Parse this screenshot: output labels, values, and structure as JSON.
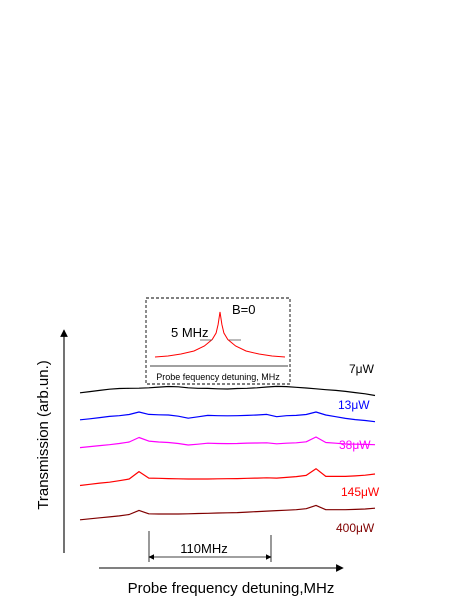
{
  "chart_data": {
    "type": "line",
    "title": "",
    "xlabel": "Probe frequency detuning,MHz",
    "ylabel": "Transmission (arb.un.)",
    "axes": "arrows only, no ticks",
    "grid": false,
    "legend": "labels at right end of each trace",
    "x": [
      0,
      10,
      20,
      30,
      40,
      50,
      60,
      70,
      80,
      90,
      100,
      110,
      120,
      130,
      140,
      150,
      160,
      170,
      180,
      190,
      200,
      210,
      220,
      230,
      240,
      250,
      260,
      270,
      280,
      290,
      300
    ],
    "series": [
      {
        "name": "7μW",
        "color": "#000000",
        "values": [
          0.18,
          0.28,
          0.38,
          0.48,
          0.54,
          0.56,
          0.57,
          0.6,
          0.66,
          0.71,
          0.68,
          0.6,
          0.56,
          0.55,
          0.52,
          0.5,
          0.54,
          0.56,
          0.6,
          0.67,
          0.72,
          0.7,
          0.64,
          0.58,
          0.52,
          0.44,
          0.38,
          0.3,
          0.2,
          0.1,
          -0.04
        ]
      },
      {
        "name": "13μW",
        "color": "#0000ff",
        "values": [
          0.1,
          0.18,
          0.28,
          0.38,
          0.44,
          0.54,
          0.75,
          0.55,
          0.52,
          0.5,
          0.4,
          0.23,
          0.35,
          0.47,
          0.44,
          0.43,
          0.44,
          0.47,
          0.5,
          0.55,
          0.36,
          0.44,
          0.47,
          0.54,
          0.75,
          0.5,
          0.36,
          0.22,
          0.12,
          0.04,
          -0.06
        ]
      },
      {
        "name": "38μW",
        "color": "#ff00ff",
        "values": [
          0.12,
          0.2,
          0.28,
          0.36,
          0.46,
          0.58,
          0.96,
          0.66,
          0.58,
          0.54,
          0.46,
          0.33,
          0.4,
          0.48,
          0.46,
          0.45,
          0.46,
          0.49,
          0.5,
          0.52,
          0.43,
          0.48,
          0.52,
          0.6,
          1.0,
          0.54,
          0.48,
          0.42,
          0.4,
          0.38,
          0.36
        ]
      },
      {
        "name": "145μW",
        "color": "#ff0000",
        "values": [
          0.04,
          0.14,
          0.24,
          0.32,
          0.44,
          0.58,
          1.2,
          0.66,
          0.64,
          0.62,
          0.6,
          0.58,
          0.58,
          0.58,
          0.6,
          0.61,
          0.62,
          0.64,
          0.66,
          0.68,
          0.66,
          0.72,
          0.78,
          0.88,
          1.44,
          0.8,
          0.8,
          0.8,
          0.84,
          0.9,
          1.0
        ]
      },
      {
        "name": "400μW",
        "color": "#800000",
        "values": [
          0.02,
          0.1,
          0.18,
          0.26,
          0.34,
          0.46,
          0.8,
          0.52,
          0.5,
          0.5,
          0.5,
          0.52,
          0.54,
          0.56,
          0.58,
          0.6,
          0.62,
          0.66,
          0.7,
          0.74,
          0.78,
          0.82,
          0.86,
          0.94,
          1.22,
          0.86,
          0.86,
          0.86,
          0.88,
          0.92,
          0.98
        ]
      }
    ],
    "annotations": {
      "separation_label": "110MHz"
    },
    "inset": {
      "type": "line",
      "xlabel": "Probe fequency detuning, MHz",
      "label": "B=0",
      "width_label": "5 MHz",
      "color": "#ff0000",
      "x": [
        -50,
        -40,
        -30,
        -20,
        -12,
        -6,
        -3,
        -1.5,
        0,
        1.5,
        3,
        6,
        12,
        20,
        30,
        40,
        50
      ],
      "values": [
        0.1,
        0.12,
        0.16,
        0.22,
        0.32,
        0.45,
        0.58,
        0.75,
        1.0,
        0.75,
        0.58,
        0.45,
        0.32,
        0.22,
        0.16,
        0.12,
        0.1
      ]
    }
  }
}
